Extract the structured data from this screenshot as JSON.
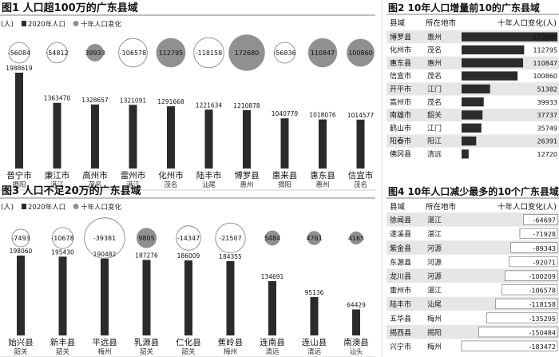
{
  "colors": {
    "bar": "#2b2b2b",
    "bubble_gray": "#909090",
    "bubble_white": "#ffffff",
    "bubble_stroke": "#8a8a8a",
    "row_alt": "#e6e6e6",
    "title_underline": "#555555",
    "county_name": "#111111",
    "city_name": "#333333"
  },
  "chart_data": [
    {
      "id": "fig1",
      "type": "bar",
      "title": "图1 人口超100万的广东县域",
      "unit": "(人)",
      "legend": [
        "2020年人口",
        "十年人口变化"
      ],
      "categories": [
        "普宁市",
        "廉江市",
        "高州市",
        "雷州市",
        "化州市",
        "陆丰市",
        "博罗县",
        "惠来县",
        "惠东县",
        "信宜市"
      ],
      "cities": [
        "揭阳",
        "湛江",
        "茂名",
        "湛江",
        "茂名",
        "汕尾",
        "惠州",
        "揭阳",
        "惠州",
        "茂名"
      ],
      "series": [
        {
          "name": "2020年人口",
          "values": [
            1988619,
            1363470,
            1328657,
            1321091,
            1291668,
            1221634,
            1210878,
            1040779,
            1018076,
            1014577
          ]
        },
        {
          "name": "十年人口变化",
          "values": [
            -56084,
            -54812,
            39933,
            -106578,
            112795,
            -118158,
            172680,
            -56836,
            110847,
            100860
          ]
        }
      ]
    },
    {
      "id": "fig3",
      "type": "bar",
      "title": "图3 人口不足20万的广东县域",
      "unit": "(人)",
      "legend": [
        "2020年人口",
        "十年人口变化"
      ],
      "categories": [
        "始兴县",
        "新丰县",
        "平远县",
        "乳源县",
        "仁化县",
        "蕉岭县",
        "连南县",
        "连山县",
        "南澳县"
      ],
      "cities": [
        "韶关",
        "韶关",
        "梅州",
        "韶关",
        "韶关",
        "梅州",
        "清远",
        "清远",
        "汕头"
      ],
      "series": [
        {
          "name": "2020年人口",
          "values": [
            198060,
            195430,
            190482,
            187276,
            186009,
            184355,
            134691,
            95136,
            64429
          ]
        },
        {
          "name": "十年人口变化",
          "values": [
            -7493,
            -10678,
            -39381,
            9805,
            -14347,
            -21507,
            5484,
            4761,
            4165
          ]
        }
      ]
    },
    {
      "id": "fig2",
      "type": "table",
      "title": "图2 10年人口增量前10的广东县域",
      "columns": [
        "县域",
        "所在地市",
        "十年人口变化(人)"
      ],
      "rows": [
        {
          "county": "博罗县",
          "city": "惠州",
          "value": 172680
        },
        {
          "county": "化州市",
          "city": "茂名",
          "value": 112795
        },
        {
          "county": "惠东县",
          "city": "惠州",
          "value": 110847
        },
        {
          "county": "信宜市",
          "city": "茂名",
          "value": 100860
        },
        {
          "county": "开平市",
          "city": "江门",
          "value": 51382
        },
        {
          "county": "高州市",
          "city": "茂名",
          "value": 39933
        },
        {
          "county": "南雄市",
          "city": "韶关",
          "value": 37737
        },
        {
          "county": "鹤山市",
          "city": "江门",
          "value": 35749
        },
        {
          "county": "阳春市",
          "city": "阳江",
          "value": 26391
        },
        {
          "county": "佛冈县",
          "city": "清远",
          "value": 12720
        }
      ]
    },
    {
      "id": "fig4",
      "type": "table",
      "title": "图4 10年人口减少最多的10个广东县域",
      "columns": [
        "县域",
        "所在地市",
        "十年人口变化(人)"
      ],
      "rows": [
        {
          "county": "徐闻县",
          "city": "湛江",
          "value": -64697
        },
        {
          "county": "遂溪县",
          "city": "湛江",
          "value": -71928
        },
        {
          "county": "紫金县",
          "city": "河源",
          "value": -89343
        },
        {
          "county": "东源县",
          "city": "河源",
          "value": -92071
        },
        {
          "county": "龙川县",
          "city": "河源",
          "value": -100209
        },
        {
          "county": "雷州市",
          "city": "湛江",
          "value": -106578
        },
        {
          "county": "陆丰市",
          "city": "汕尾",
          "value": -118158
        },
        {
          "county": "五华县",
          "city": "梅州",
          "value": -135295
        },
        {
          "county": "揭西县",
          "city": "揭阳",
          "value": -150484
        },
        {
          "county": "兴宁市",
          "city": "梅州",
          "value": -183472
        }
      ]
    }
  ]
}
